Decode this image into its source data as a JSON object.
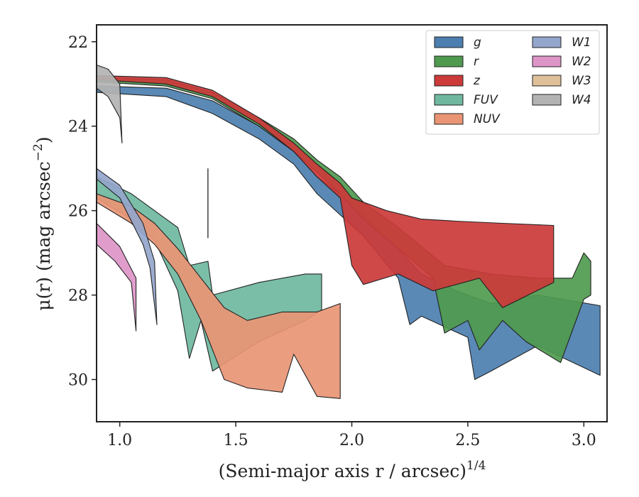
{
  "chart_data": {
    "type": "area",
    "title": "",
    "xlabel": "(Semi-major axis r / arcsec)",
    "xlabel_superscript": "1/4",
    "ylabel": "μ(r) (mag arcsec",
    "ylabel_superscript": "−2",
    "ylabel_suffix": ")",
    "xlim": [
      0.9,
      3.1
    ],
    "ylim": [
      31.0,
      21.6
    ],
    "y_inverted": true,
    "xticks": [
      1.0,
      1.5,
      2.0,
      2.5,
      3.0
    ],
    "xtick_labels": [
      "1.0",
      "1.5",
      "2.0",
      "2.5",
      "3.0"
    ],
    "yticks": [
      22,
      24,
      26,
      28,
      30
    ],
    "ytick_labels": [
      "22",
      "24",
      "26",
      "28",
      "30"
    ],
    "grid": false,
    "legend": {
      "placement": "top-right",
      "columns": 2
    },
    "vertical_marker": {
      "x": 1.38,
      "y": [
        25.0,
        26.65
      ]
    },
    "series": [
      {
        "name": "g",
        "color": "#4c7fb0",
        "upper": [
          [
            0.9,
            23.05
          ],
          [
            1.2,
            23.1
          ],
          [
            1.4,
            23.4
          ],
          [
            1.6,
            24.0
          ],
          [
            1.75,
            24.6
          ],
          [
            1.85,
            25.2
          ],
          [
            1.95,
            25.6
          ],
          [
            2.05,
            26.1
          ],
          [
            2.2,
            26.9
          ],
          [
            2.3,
            27.5
          ],
          [
            2.45,
            27.9
          ],
          [
            2.6,
            28.2
          ],
          [
            2.8,
            28.0
          ],
          [
            3.07,
            28.25
          ]
        ],
        "lower": [
          [
            0.9,
            23.2
          ],
          [
            1.2,
            23.3
          ],
          [
            1.4,
            23.7
          ],
          [
            1.6,
            24.3
          ],
          [
            1.75,
            24.9
          ],
          [
            1.85,
            25.6
          ],
          [
            1.95,
            26.1
          ],
          [
            2.05,
            26.6
          ],
          [
            2.2,
            27.6
          ],
          [
            2.25,
            28.7
          ],
          [
            2.3,
            28.5
          ],
          [
            2.5,
            29.0
          ],
          [
            2.53,
            30.0
          ],
          [
            2.6,
            29.8
          ],
          [
            2.8,
            29.2
          ],
          [
            3.07,
            29.9
          ]
        ]
      },
      {
        "name": "r",
        "color": "#4f9a4f",
        "upper": [
          [
            0.9,
            22.85
          ],
          [
            1.2,
            22.9
          ],
          [
            1.4,
            23.2
          ],
          [
            1.6,
            23.8
          ],
          [
            1.75,
            24.3
          ],
          [
            1.85,
            24.8
          ],
          [
            1.95,
            25.2
          ],
          [
            2.05,
            25.8
          ],
          [
            2.2,
            26.4
          ],
          [
            2.4,
            27.3
          ],
          [
            2.6,
            27.5
          ],
          [
            2.8,
            27.6
          ],
          [
            2.95,
            27.6
          ],
          [
            3.0,
            27.0
          ],
          [
            3.03,
            27.2
          ]
        ],
        "lower": [
          [
            0.9,
            22.95
          ],
          [
            1.2,
            23.05
          ],
          [
            1.4,
            23.35
          ],
          [
            1.6,
            24.0
          ],
          [
            1.75,
            24.6
          ],
          [
            1.85,
            25.1
          ],
          [
            1.95,
            25.6
          ],
          [
            2.05,
            26.2
          ],
          [
            2.2,
            26.9
          ],
          [
            2.35,
            27.6
          ],
          [
            2.4,
            28.9
          ],
          [
            2.5,
            28.6
          ],
          [
            2.55,
            29.3
          ],
          [
            2.65,
            28.6
          ],
          [
            2.75,
            29.1
          ],
          [
            2.9,
            29.6
          ],
          [
            3.0,
            28.1
          ],
          [
            3.03,
            28.0
          ]
        ]
      },
      {
        "name": "z",
        "color": "#cc3a3a",
        "upper": [
          [
            0.9,
            22.8
          ],
          [
            1.2,
            22.85
          ],
          [
            1.4,
            23.15
          ],
          [
            1.6,
            23.8
          ],
          [
            1.75,
            24.4
          ],
          [
            1.85,
            24.9
          ],
          [
            1.95,
            25.35
          ],
          [
            2.0,
            25.7
          ],
          [
            2.15,
            26.0
          ],
          [
            2.3,
            26.2
          ],
          [
            2.45,
            26.25
          ],
          [
            2.65,
            26.3
          ],
          [
            2.87,
            26.35
          ]
        ],
        "lower": [
          [
            0.9,
            22.9
          ],
          [
            1.2,
            23.0
          ],
          [
            1.4,
            23.3
          ],
          [
            1.6,
            23.95
          ],
          [
            1.75,
            24.6
          ],
          [
            1.85,
            25.2
          ],
          [
            1.95,
            25.7
          ],
          [
            2.0,
            27.3
          ],
          [
            2.05,
            27.75
          ],
          [
            2.2,
            27.5
          ],
          [
            2.35,
            27.9
          ],
          [
            2.55,
            27.6
          ],
          [
            2.65,
            28.3
          ],
          [
            2.87,
            27.7
          ]
        ]
      },
      {
        "name": "FUV",
        "color": "#6fb89f",
        "upper": [
          [
            0.9,
            25.2
          ],
          [
            1.05,
            25.6
          ],
          [
            1.15,
            26.0
          ],
          [
            1.25,
            26.4
          ],
          [
            1.3,
            27.3
          ],
          [
            1.38,
            27.2
          ],
          [
            1.4,
            28.0
          ],
          [
            1.6,
            27.7
          ],
          [
            1.8,
            27.5
          ],
          [
            1.87,
            27.5
          ]
        ],
        "lower": [
          [
            0.9,
            25.7
          ],
          [
            1.05,
            26.2
          ],
          [
            1.15,
            26.7
          ],
          [
            1.25,
            27.9
          ],
          [
            1.3,
            29.5
          ],
          [
            1.35,
            28.6
          ],
          [
            1.4,
            29.8
          ],
          [
            1.6,
            29.1
          ],
          [
            1.8,
            28.6
          ],
          [
            1.87,
            28.35
          ]
        ]
      },
      {
        "name": "NUV",
        "color": "#e99575",
        "upper": [
          [
            0.9,
            25.6
          ],
          [
            1.05,
            25.9
          ],
          [
            1.15,
            26.3
          ],
          [
            1.25,
            26.9
          ],
          [
            1.35,
            27.6
          ],
          [
            1.45,
            28.3
          ],
          [
            1.55,
            28.6
          ],
          [
            1.7,
            28.4
          ],
          [
            1.85,
            28.4
          ],
          [
            1.95,
            28.2
          ]
        ],
        "lower": [
          [
            0.9,
            25.8
          ],
          [
            1.05,
            26.3
          ],
          [
            1.15,
            26.8
          ],
          [
            1.25,
            27.5
          ],
          [
            1.35,
            28.6
          ],
          [
            1.45,
            30.0
          ],
          [
            1.55,
            30.2
          ],
          [
            1.7,
            30.3
          ],
          [
            1.75,
            29.4
          ],
          [
            1.85,
            30.4
          ],
          [
            1.95,
            30.45
          ],
          [
            1.95,
            29.7
          ]
        ]
      },
      {
        "name": "W1",
        "color": "#94a6cc",
        "upper": [
          [
            0.9,
            25.0
          ],
          [
            1.0,
            25.4
          ],
          [
            1.1,
            26.3
          ],
          [
            1.15,
            27.2
          ],
          [
            1.16,
            28.7
          ]
        ],
        "lower": [
          [
            0.9,
            25.25
          ],
          [
            1.0,
            25.7
          ],
          [
            1.1,
            26.8
          ],
          [
            1.13,
            27.35
          ],
          [
            1.16,
            28.7
          ]
        ]
      },
      {
        "name": "W2",
        "color": "#dd95c8",
        "upper": [
          [
            0.9,
            26.3
          ],
          [
            1.0,
            26.85
          ],
          [
            1.07,
            27.6
          ],
          [
            1.07,
            28.85
          ]
        ],
        "lower": [
          [
            0.9,
            26.8
          ],
          [
            0.98,
            27.2
          ],
          [
            1.05,
            27.7
          ],
          [
            1.07,
            28.85
          ]
        ]
      },
      {
        "name": "W3",
        "color": "#dfc09a",
        "upper": [],
        "lower": []
      },
      {
        "name": "W4",
        "color": "#b3b3b3",
        "upper": [
          [
            0.9,
            22.55
          ],
          [
            0.95,
            22.65
          ],
          [
            1.0,
            23.0
          ],
          [
            1.01,
            24.4
          ]
        ],
        "lower": [
          [
            0.9,
            23.1
          ],
          [
            0.95,
            23.3
          ],
          [
            1.0,
            23.8
          ],
          [
            1.01,
            24.4
          ]
        ]
      }
    ]
  }
}
